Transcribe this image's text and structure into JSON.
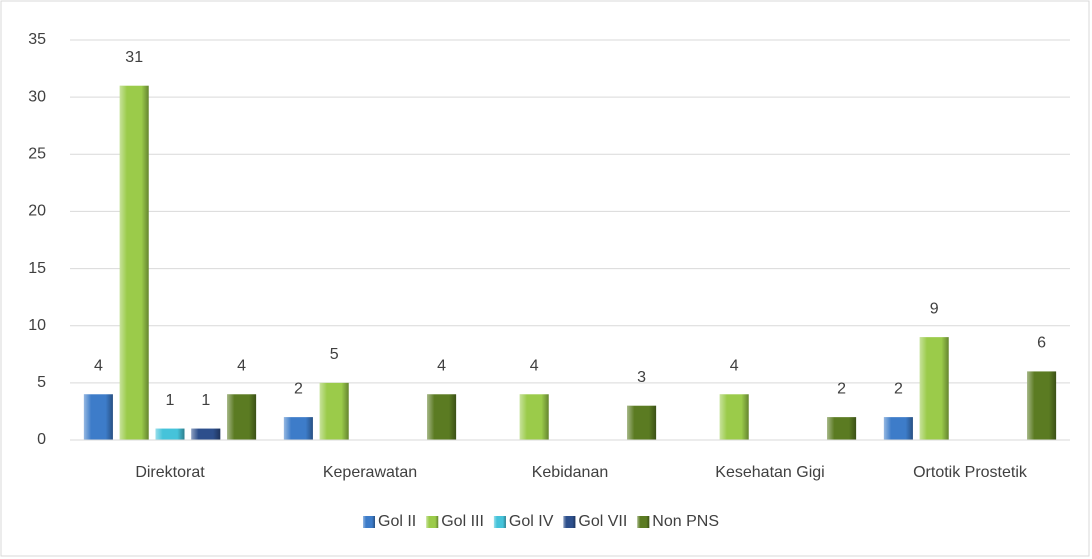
{
  "chart_data": {
    "type": "bar",
    "categories": [
      "Direktorat",
      "Keperawatan",
      "Kebidanan",
      "Kesehatan Gigi",
      "Ortotik Prostetik"
    ],
    "series": [
      {
        "name": "Gol II",
        "color": "#3d7cc9",
        "values": [
          4,
          2,
          null,
          null,
          2
        ]
      },
      {
        "name": "Gol III",
        "color": "#9bcb4a",
        "values": [
          31,
          5,
          4,
          4,
          9
        ]
      },
      {
        "name": "Gol IV",
        "color": "#45c3da",
        "values": [
          1,
          null,
          null,
          null,
          null
        ]
      },
      {
        "name": "Gol VII",
        "color": "#2d4f8c",
        "values": [
          1,
          null,
          null,
          null,
          null
        ]
      },
      {
        "name": "Non PNS",
        "color": "#5b7b22",
        "values": [
          4,
          4,
          3,
          2,
          6
        ]
      }
    ],
    "ylim": [
      0,
      35
    ],
    "yticks": [
      0,
      5,
      10,
      15,
      20,
      25,
      30,
      35
    ],
    "grid": true,
    "legend": "bottom"
  }
}
